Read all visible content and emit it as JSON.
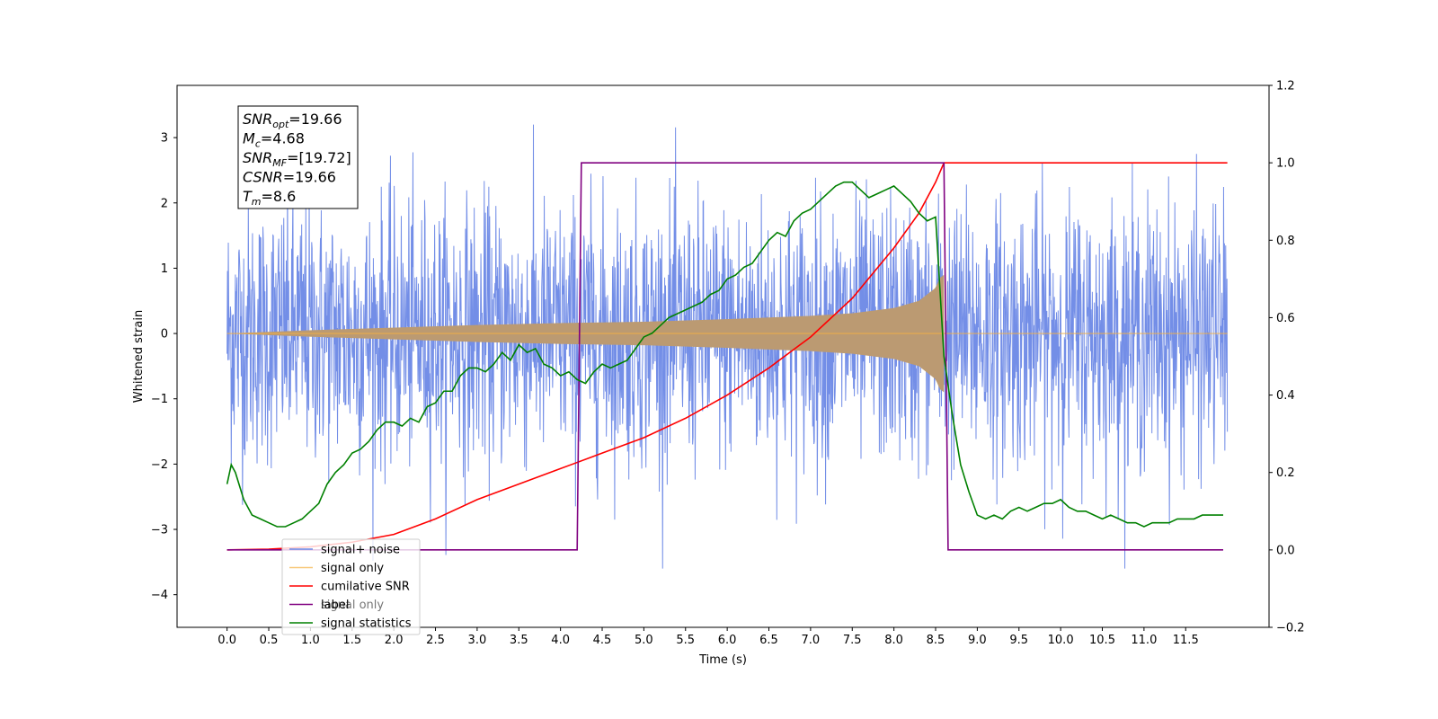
{
  "chart_data": {
    "type": "line",
    "title": "",
    "xlabel": "Time (s)",
    "ylabel": "Whitened strain",
    "xlim": [
      -0.6,
      12.5
    ],
    "ylim": [
      -4.5,
      3.8
    ],
    "y2lim": [
      -0.2,
      1.2
    ],
    "x_ticks": [
      0.0,
      0.5,
      1.0,
      1.5,
      2.0,
      2.5,
      3.0,
      3.5,
      4.0,
      4.5,
      5.0,
      5.5,
      6.0,
      6.5,
      7.0,
      7.5,
      8.0,
      8.5,
      9.0,
      9.5,
      10.0,
      10.5,
      11.0,
      11.5
    ],
    "x_tick_labels": [
      "0.0",
      "0.5",
      "1.0",
      "1.5",
      "2.0",
      "2.5",
      "3.0",
      "3.5",
      "4.0",
      "4.5",
      "5.0",
      "5.5",
      "6.0",
      "6.5",
      "7.0",
      "7.5",
      "8.0",
      "8.5",
      "9.0",
      "9.5",
      "10.0",
      "10.5",
      "11.0",
      "11.5"
    ],
    "y_ticks": [
      -4,
      -3,
      -2,
      -1,
      0,
      1,
      2,
      3
    ],
    "y_tick_labels": [
      "−4",
      "−3",
      "−2",
      "−1",
      "0",
      "1",
      "2",
      "3"
    ],
    "y2_ticks": [
      -0.2,
      0.0,
      0.2,
      0.4,
      0.6,
      0.8,
      1.0,
      1.2
    ],
    "y2_tick_labels": [
      "−0.2",
      "0.0",
      "0.2",
      "0.4",
      "0.6",
      "0.8",
      "1.0",
      "1.2"
    ],
    "grid": false,
    "legend_position": "bottom-left",
    "annotation": {
      "lines": [
        {
          "base": "SNR",
          "sub": "opt",
          "value": "=19.66"
        },
        {
          "base": "M",
          "sub": "c",
          "value": "=4.68"
        },
        {
          "base": "SNR",
          "sub": "MF",
          "value": "=[19.72]"
        },
        {
          "base": "CSNR",
          "sub": "",
          "value": "=19.66"
        },
        {
          "base": "T",
          "sub": "m",
          "value": "=8.6"
        }
      ]
    },
    "series": [
      {
        "name": "signal+ noise",
        "color": "#6b88e6",
        "axis": "left",
        "kind": "noise_band",
        "x_range": [
          0.0,
          12.0
        ],
        "amplitude_std": 1.0,
        "peak_range": [
          -3.6,
          3.2
        ]
      },
      {
        "name": "signal only",
        "color": "#f5b041",
        "axis": "left",
        "kind": "chirp_envelope",
        "x_range": [
          0.0,
          12.0
        ],
        "merger_time": 8.6,
        "envelope": {
          "x": [
            0.0,
            1.0,
            2.0,
            3.0,
            4.0,
            5.0,
            6.0,
            7.0,
            7.5,
            8.0,
            8.3,
            8.5,
            8.55,
            8.6
          ],
          "y": [
            0.0,
            0.05,
            0.09,
            0.13,
            0.16,
            0.18,
            0.22,
            0.27,
            0.31,
            0.39,
            0.5,
            0.7,
            0.85,
            0.9
          ]
        }
      },
      {
        "name": "cumilative SNR",
        "color": "#ff0000",
        "axis": "right",
        "x": [
          0.0,
          0.5,
          1.0,
          1.5,
          2.0,
          2.5,
          3.0,
          3.5,
          4.0,
          4.5,
          5.0,
          5.5,
          6.0,
          6.5,
          7.0,
          7.5,
          8.0,
          8.3,
          8.5,
          8.6,
          12.0
        ],
        "y": [
          0.0,
          0.002,
          0.008,
          0.02,
          0.04,
          0.08,
          0.13,
          0.17,
          0.21,
          0.25,
          0.29,
          0.34,
          0.4,
          0.47,
          0.55,
          0.65,
          0.78,
          0.87,
          0.95,
          1.0,
          1.0
        ]
      },
      {
        "name": "label",
        "color": "#800080",
        "axis": "right",
        "x": [
          0.0,
          4.2,
          4.25,
          8.6,
          8.65,
          11.95
        ],
        "y": [
          0.0,
          0.0,
          1.0,
          1.0,
          0.0,
          0.0
        ]
      },
      {
        "name": "signal statistics",
        "color": "#008000",
        "axis": "right",
        "x": [
          0.0,
          0.05,
          0.1,
          0.2,
          0.3,
          0.4,
          0.5,
          0.6,
          0.7,
          0.8,
          0.9,
          1.0,
          1.1,
          1.2,
          1.3,
          1.4,
          1.5,
          1.6,
          1.7,
          1.8,
          1.9,
          2.0,
          2.1,
          2.2,
          2.3,
          2.4,
          2.5,
          2.6,
          2.7,
          2.8,
          2.9,
          3.0,
          3.1,
          3.2,
          3.3,
          3.4,
          3.5,
          3.6,
          3.7,
          3.8,
          3.9,
          4.0,
          4.1,
          4.2,
          4.3,
          4.4,
          4.5,
          4.6,
          4.7,
          4.8,
          4.9,
          5.0,
          5.1,
          5.2,
          5.3,
          5.4,
          5.5,
          5.6,
          5.7,
          5.8,
          5.9,
          6.0,
          6.1,
          6.2,
          6.3,
          6.4,
          6.5,
          6.6,
          6.7,
          6.8,
          6.9,
          7.0,
          7.1,
          7.2,
          7.3,
          7.4,
          7.5,
          7.6,
          7.7,
          7.8,
          7.9,
          8.0,
          8.1,
          8.2,
          8.3,
          8.4,
          8.5,
          8.6,
          8.7,
          8.8,
          8.9,
          9.0,
          9.1,
          9.2,
          9.3,
          9.4,
          9.5,
          9.6,
          9.7,
          9.8,
          9.9,
          10.0,
          10.1,
          10.2,
          10.3,
          10.4,
          10.5,
          10.6,
          10.7,
          10.8,
          10.9,
          11.0,
          11.1,
          11.2,
          11.3,
          11.4,
          11.5,
          11.6,
          11.7,
          11.8,
          11.9,
          11.95
        ],
        "y": [
          0.17,
          0.22,
          0.2,
          0.13,
          0.09,
          0.08,
          0.07,
          0.06,
          0.06,
          0.07,
          0.08,
          0.1,
          0.12,
          0.17,
          0.2,
          0.22,
          0.25,
          0.26,
          0.28,
          0.31,
          0.33,
          0.33,
          0.32,
          0.34,
          0.33,
          0.37,
          0.38,
          0.41,
          0.41,
          0.45,
          0.47,
          0.47,
          0.46,
          0.48,
          0.51,
          0.49,
          0.53,
          0.51,
          0.52,
          0.48,
          0.47,
          0.45,
          0.46,
          0.44,
          0.43,
          0.46,
          0.48,
          0.47,
          0.48,
          0.49,
          0.52,
          0.55,
          0.56,
          0.58,
          0.6,
          0.61,
          0.62,
          0.63,
          0.64,
          0.66,
          0.67,
          0.7,
          0.71,
          0.73,
          0.74,
          0.77,
          0.8,
          0.82,
          0.81,
          0.85,
          0.87,
          0.88,
          0.9,
          0.92,
          0.94,
          0.95,
          0.95,
          0.93,
          0.91,
          0.92,
          0.93,
          0.94,
          0.92,
          0.9,
          0.87,
          0.85,
          0.86,
          0.5,
          0.35,
          0.22,
          0.15,
          0.09,
          0.08,
          0.09,
          0.08,
          0.1,
          0.11,
          0.1,
          0.11,
          0.12,
          0.12,
          0.13,
          0.11,
          0.1,
          0.1,
          0.09,
          0.08,
          0.09,
          0.08,
          0.07,
          0.07,
          0.06,
          0.07,
          0.07,
          0.07,
          0.08,
          0.08,
          0.08,
          0.09,
          0.09,
          0.09,
          0.09
        ]
      },
      {
        "name": "signal only",
        "color": "#a6a6a6",
        "axis": "left",
        "kind": "legend_only"
      }
    ]
  }
}
